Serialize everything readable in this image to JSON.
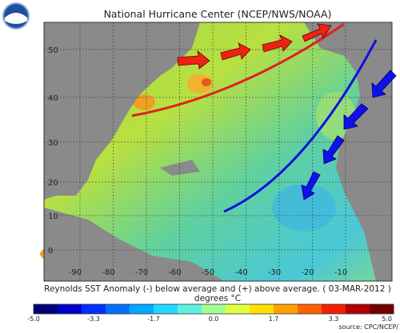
{
  "title": "National Hurricane Center (NCEP/NWS/NOAA)",
  "caption": "Reynolds SST Anomaly (-) below average and (+) above average. ( 03-MAR-2012 )",
  "units": "degrees °C",
  "lat_labels": [
    "50",
    "40",
    "30",
    "20",
    "10",
    "0"
  ],
  "lon_labels": [
    "-90",
    "-80",
    "-70",
    "-60",
    "-50",
    "-40",
    "-30",
    "-20",
    "-10"
  ],
  "colorbar_ticks": [
    "-5.0",
    "-3.3",
    "-1.7",
    "0.0",
    "1.7",
    "3.3",
    "5.0"
  ],
  "source": "source:  CPC/NCEP/"
}
